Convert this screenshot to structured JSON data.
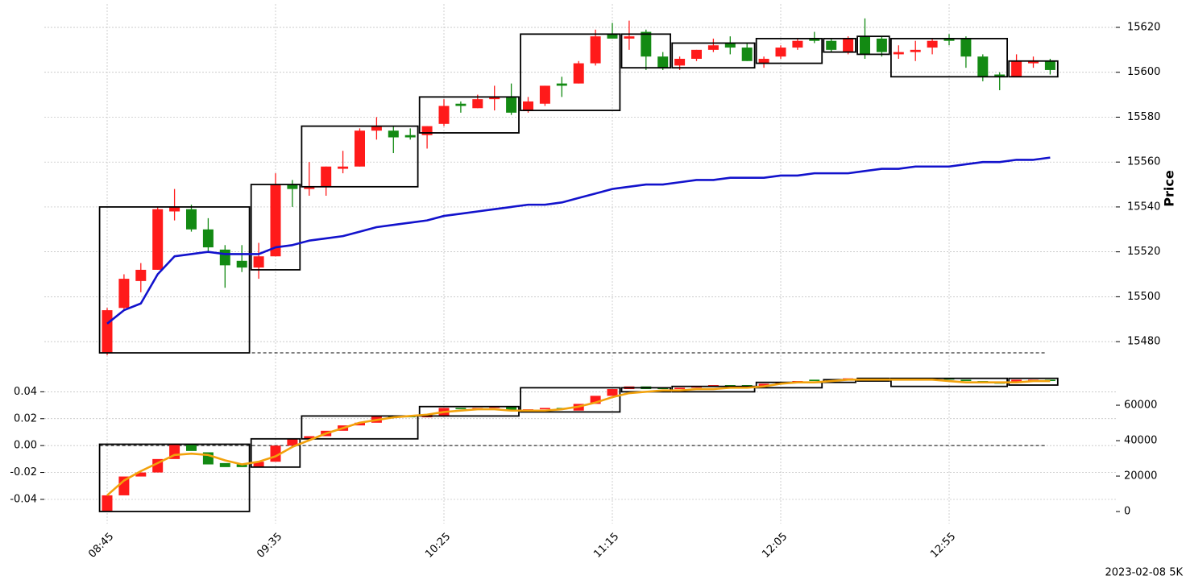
{
  "chart_data": {
    "type": "candlestick",
    "footer": "2023-02-08 5K",
    "categories": [
      "08:45",
      null,
      null,
      null,
      null,
      null,
      null,
      null,
      null,
      null,
      "09:35",
      null,
      null,
      null,
      null,
      null,
      null,
      null,
      null,
      null,
      "10:25",
      null,
      null,
      null,
      null,
      null,
      null,
      null,
      null,
      null,
      "11:15",
      null,
      null,
      null,
      null,
      null,
      null,
      null,
      null,
      null,
      "12:05",
      null,
      null,
      null,
      null,
      null,
      null,
      null,
      null,
      null,
      "12:55",
      null,
      null,
      null,
      null,
      null,
      null
    ],
    "up_color": "#ff1a1a",
    "down_color": "#138a13",
    "grid": true,
    "price": {
      "ylabel": "Price",
      "ylim": [
        15474.3,
        15630.4
      ],
      "yticks": [
        15480,
        15500,
        15520,
        15540,
        15560,
        15580,
        15600,
        15620
      ],
      "open": [
        15475,
        15495,
        15507,
        15512,
        15538,
        15539,
        15530,
        15521,
        15516,
        15513,
        15518,
        15550,
        15548,
        15549,
        15557,
        15558,
        15574,
        15574,
        15572,
        15572,
        15577,
        15586,
        15584,
        15588,
        15589,
        15583,
        15586,
        15595,
        15595,
        15604,
        15617,
        15615,
        15618,
        15607,
        15603,
        15606,
        15610,
        15613,
        15611,
        15604,
        15607,
        15611,
        15615,
        15614,
        15609,
        15616,
        15615,
        15608,
        15609,
        15611,
        15615,
        15615,
        15607,
        15599,
        15598,
        15604,
        15605
      ],
      "high": [
        15495,
        15510,
        15515,
        15540,
        15548,
        15541,
        15535,
        15523,
        15523,
        15524,
        15555,
        15552,
        15560,
        15558,
        15565,
        15575,
        15580,
        15576,
        15575,
        15576,
        15588,
        15587,
        15590,
        15594,
        15595,
        15589,
        15594,
        15598,
        15605,
        15619,
        15622,
        15623,
        15619,
        15609,
        15607,
        15610,
        15615,
        15616,
        15613,
        15607,
        15612,
        15615,
        15618,
        15615,
        15616,
        15624,
        15616,
        15612,
        15614,
        15615,
        15617,
        15616,
        15608,
        15600,
        15608,
        15607,
        15606
      ],
      "low": [
        15474,
        15494,
        15502,
        15512,
        15534,
        15529,
        15520,
        15504,
        15511,
        15508,
        15518,
        15540,
        15545,
        15545,
        15555,
        15558,
        15570,
        15564,
        15570,
        15566,
        15576,
        15582,
        15584,
        15583,
        15581,
        15582,
        15585,
        15589,
        15595,
        15603,
        15615,
        15610,
        15601,
        15601,
        15601,
        15605,
        15609,
        15608,
        15605,
        15602,
        15606,
        15610,
        15613,
        15609,
        15608,
        15606,
        15607,
        15606,
        15605,
        15608,
        15612,
        15602,
        15596,
        15592,
        15598,
        15602,
        15599
      ],
      "close": [
        15494,
        15508,
        15512,
        15539,
        15540,
        15530,
        15522,
        15514,
        15513,
        15518,
        15550,
        15548,
        15549,
        15558,
        15558,
        15574,
        15576,
        15571,
        15571,
        15576,
        15585,
        15585,
        15588,
        15589,
        15582,
        15587,
        15594,
        15594,
        15604,
        15616,
        15615,
        15616,
        15607,
        15602,
        15606,
        15610,
        15612,
        15611,
        15605,
        15606,
        15611,
        15614,
        15614,
        15610,
        15615,
        15608,
        15609,
        15609,
        15610,
        15614,
        15614,
        15607,
        15598,
        15598,
        15605,
        15605,
        15601
      ],
      "ma": {
        "color": "#1212cc",
        "values": [
          15488,
          15494,
          15497,
          15510,
          15518,
          15519,
          15520,
          15519,
          15519,
          15519,
          15522,
          15523,
          15525,
          15526,
          15527,
          15529,
          15531,
          15532,
          15533,
          15534,
          15536,
          15537,
          15538,
          15539,
          15540,
          15541,
          15541,
          15542,
          15544,
          15546,
          15548,
          15549,
          15550,
          15550,
          15551,
          15552,
          15552,
          15553,
          15553,
          15553,
          15554,
          15554,
          15555,
          15555,
          15555,
          15556,
          15557,
          15557,
          15558,
          15558,
          15558,
          15559,
          15560,
          15560,
          15561,
          15561,
          15562
        ]
      },
      "baseline": 15475,
      "boxes": [
        {
          "start": 0,
          "end": 8,
          "low": 15475,
          "high": 15540
        },
        {
          "start": 9,
          "end": 11,
          "low": 15512,
          "high": 15550
        },
        {
          "start": 12,
          "end": 18,
          "low": 15549,
          "high": 15576
        },
        {
          "start": 19,
          "end": 24,
          "low": 15573,
          "high": 15589
        },
        {
          "start": 25,
          "end": 30,
          "low": 15583,
          "high": 15617
        },
        {
          "start": 31,
          "end": 33,
          "low": 15602,
          "high": 15617
        },
        {
          "start": 34,
          "end": 38,
          "low": 15602,
          "high": 15613
        },
        {
          "start": 39,
          "end": 42,
          "low": 15604,
          "high": 15615
        },
        {
          "start": 43,
          "end": 44,
          "low": 15609,
          "high": 15615
        },
        {
          "start": 45,
          "end": 46,
          "low": 15608,
          "high": 15616
        },
        {
          "start": 47,
          "end": 53,
          "low": 15598,
          "high": 15615
        },
        {
          "start": 54,
          "end": 56,
          "low": 15598,
          "high": 15605
        }
      ]
    },
    "lower": {
      "ylim": [
        -0.058,
        0.054
      ],
      "yticks": [
        0.04,
        0.02,
        {
          "value": 0,
          "label": "0.00"
        },
        -0.02,
        -0.04
      ],
      "y2lim": [
        -6800,
        78200
      ],
      "y2ticks": [
        0,
        20000,
        40000,
        60000
      ],
      "open": [
        -0.049,
        -0.037,
        -0.023,
        -0.02,
        -0.01,
        0.001,
        -0.005,
        -0.013,
        -0.014,
        -0.016,
        -0.012,
        0.0,
        0.005,
        0.007,
        0.011,
        0.015,
        0.017,
        0.022,
        0.022,
        0.021,
        0.022,
        0.028,
        0.027,
        0.028,
        0.029,
        0.026,
        0.027,
        0.028,
        0.026,
        0.031,
        0.037,
        0.042,
        0.044,
        0.043,
        0.042,
        0.043,
        0.044,
        0.045,
        0.045,
        0.044,
        0.046,
        0.047,
        0.049,
        0.049,
        0.049,
        0.05,
        0.05,
        0.049,
        0.049,
        0.049,
        0.05,
        0.049,
        0.048,
        0.047,
        0.047,
        0.048,
        0.049
      ],
      "close": [
        -0.037,
        -0.023,
        -0.02,
        -0.01,
        0.001,
        -0.004,
        -0.014,
        -0.016,
        -0.016,
        -0.012,
        0.0,
        0.005,
        0.007,
        0.011,
        0.015,
        0.017,
        0.022,
        0.021,
        0.021,
        0.023,
        0.028,
        0.027,
        0.028,
        0.029,
        0.026,
        0.027,
        0.028,
        0.027,
        0.031,
        0.037,
        0.042,
        0.044,
        0.042,
        0.042,
        0.043,
        0.044,
        0.045,
        0.044,
        0.044,
        0.046,
        0.047,
        0.048,
        0.048,
        0.048,
        0.05,
        0.049,
        0.049,
        0.05,
        0.05,
        0.05,
        0.049,
        0.048,
        0.047,
        0.046,
        0.049,
        0.049,
        0.048
      ],
      "line": {
        "color": "#f2a20c",
        "values": [
          -0.037,
          -0.026,
          -0.019,
          -0.013,
          -0.007,
          -0.006,
          -0.007,
          -0.011,
          -0.014,
          -0.012,
          -0.008,
          -0.001,
          0.004,
          0.009,
          0.013,
          0.017,
          0.019,
          0.021,
          0.022,
          0.023,
          0.025,
          0.026,
          0.027,
          0.027,
          0.026,
          0.026,
          0.026,
          0.027,
          0.029,
          0.032,
          0.036,
          0.039,
          0.04,
          0.041,
          0.041,
          0.042,
          0.042,
          0.043,
          0.043,
          0.044,
          0.046,
          0.047,
          0.047,
          0.048,
          0.049,
          0.049,
          0.049,
          0.049,
          0.049,
          0.049,
          0.048,
          0.047,
          0.047,
          0.047,
          0.047,
          0.048,
          0.048
        ]
      },
      "baseline": 0,
      "boxes": [
        {
          "start": 0,
          "end": 8,
          "low": -0.049,
          "high": 0.001
        },
        {
          "start": 9,
          "end": 11,
          "low": -0.016,
          "high": 0.005
        },
        {
          "start": 12,
          "end": 18,
          "low": 0.005,
          "high": 0.022
        },
        {
          "start": 19,
          "end": 24,
          "low": 0.022,
          "high": 0.029
        },
        {
          "start": 25,
          "end": 30,
          "low": 0.025,
          "high": 0.043
        },
        {
          "start": 31,
          "end": 33,
          "low": 0.04,
          "high": 0.043
        },
        {
          "start": 34,
          "end": 38,
          "low": 0.04,
          "high": 0.044
        },
        {
          "start": 39,
          "end": 42,
          "low": 0.043,
          "high": 0.047
        },
        {
          "start": 43,
          "end": 44,
          "low": 0.047,
          "high": 0.049
        },
        {
          "start": 45,
          "end": 46,
          "low": 0.048,
          "high": 0.05
        },
        {
          "start": 47,
          "end": 53,
          "low": 0.044,
          "high": 0.05
        },
        {
          "start": 54,
          "end": 56,
          "low": 0.045,
          "high": 0.05
        }
      ]
    }
  }
}
